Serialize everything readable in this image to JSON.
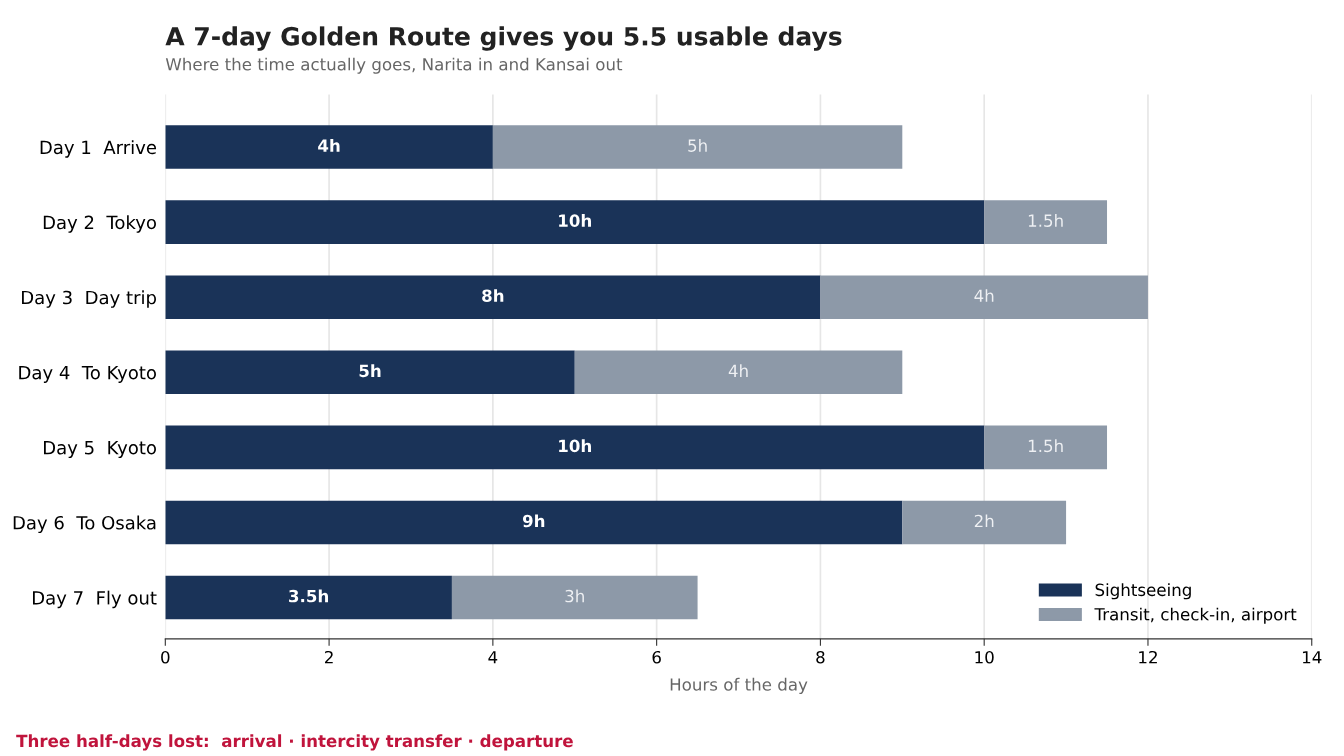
{
  "chart_data": {
    "type": "bar",
    "orientation": "horizontal",
    "stacked": true,
    "title": "A 7-day Golden Route gives you 5.5 usable days",
    "subtitle": "Where the time actually goes, Narita in and Kansai out",
    "xlabel": "Hours of the day",
    "categories": [
      "Day 1  Arrive",
      "Day 2  Tokyo",
      "Day 3  Day trip",
      "Day 4  To Kyoto",
      "Day 5  Kyoto",
      "Day 6  To Osaka",
      "Day 7  Fly out"
    ],
    "series": [
      {
        "name": "Sightseeing",
        "color": "#1a3358",
        "values": [
          4,
          10,
          8,
          5,
          10,
          9,
          3.5
        ],
        "value_labels": [
          "4h",
          "10h",
          "8h",
          "5h",
          "10h",
          "9h",
          "3.5h"
        ]
      },
      {
        "name": "Transit, check-in, airport",
        "color": "#8d99a8",
        "values": [
          5,
          1.5,
          4,
          4,
          1.5,
          2,
          3
        ],
        "value_labels": [
          "5h",
          "1.5h",
          "4h",
          "4h",
          "1.5h",
          "2h",
          "3h"
        ]
      }
    ],
    "xlim": [
      0,
      14
    ],
    "xticks": [
      0,
      2,
      4,
      6,
      8,
      10,
      12,
      14
    ],
    "grid": "x",
    "legend": "bottom right",
    "annotations": [
      "Three half-days lost:  arrival · intercity transfer · departure"
    ]
  }
}
